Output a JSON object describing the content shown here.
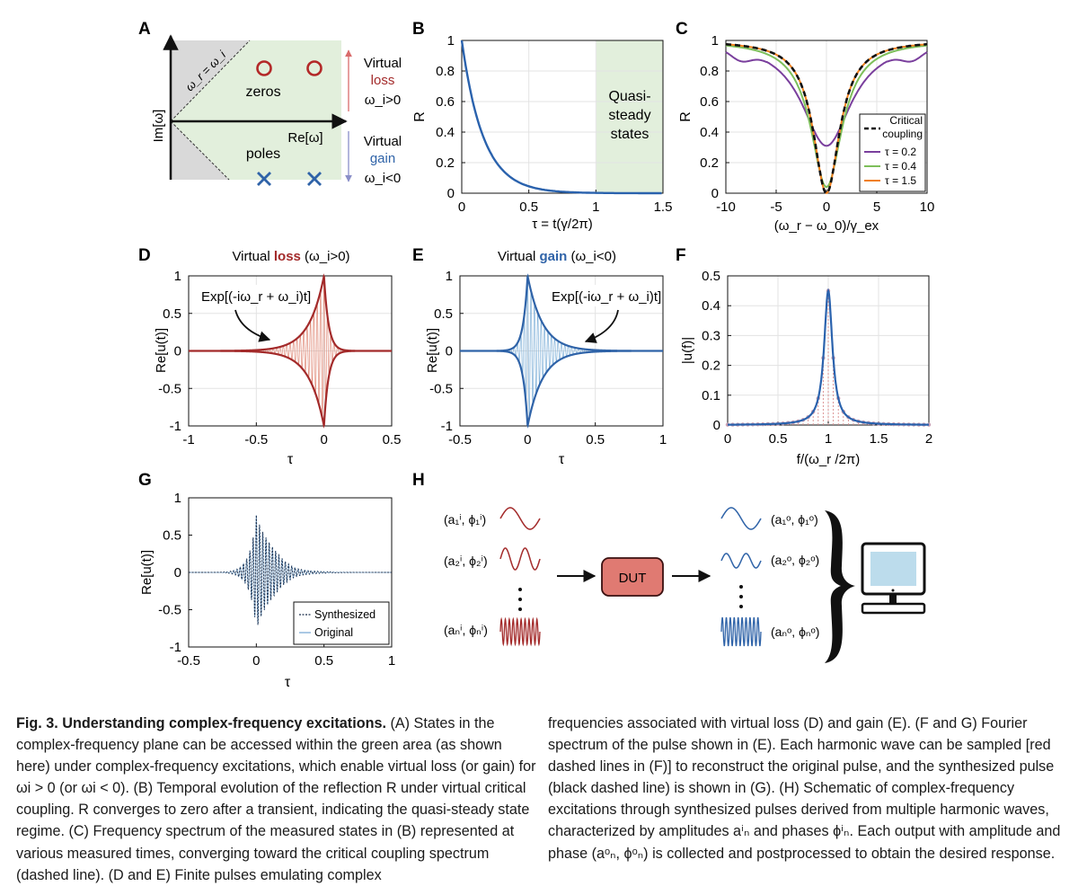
{
  "panels": {
    "A": {
      "letter": "A",
      "ylabel": "Im[ω]",
      "xlabel": "Re[ω]",
      "diag": "ω_r = ω_i",
      "zeros": "zeros",
      "poles": "poles",
      "loss_top": "Virtual",
      "loss_word": "loss",
      "loss_cond": "ω_i>0",
      "gain_top": "Virtual",
      "gain_word": "gain",
      "gain_cond": "ω_i<0"
    },
    "B": {
      "letter": "B",
      "ylabel": "R",
      "xlabel": "τ = t(γ/2π)",
      "region": [
        "Quasi-",
        "steady",
        "states"
      ]
    },
    "C": {
      "letter": "C",
      "ylabel": "R",
      "xlabel": "(ω_r − ω_0)/γ_ex"
    },
    "D": {
      "letter": "D",
      "ylabel": "Re[u(t)]",
      "xlabel": "τ",
      "title_pre": "Virtual ",
      "title_word": "loss",
      "title_post": " (ω_i>0)",
      "annot": "Exp[(-iω_r + ω_i)t]"
    },
    "E": {
      "letter": "E",
      "ylabel": "Re[u(t)]",
      "xlabel": "τ",
      "title_pre": "Virtual ",
      "title_word": "gain",
      "title_post": " (ω_i<0)",
      "annot": "Exp[(-iω_r + ω_i)t]"
    },
    "F": {
      "letter": "F",
      "ylabel": "|u(f)|",
      "xlabel": "f/(ω_r /2π)"
    },
    "G": {
      "letter": "G",
      "ylabel": "Re[u(t)]",
      "xlabel": "τ"
    },
    "H": {
      "letter": "H",
      "dut": "DUT",
      "in_labels": [
        "(a₁ⁱ, ϕ₁ⁱ)",
        "(a₂ⁱ, ϕ₂ⁱ)",
        "(aₙⁱ, ϕₙⁱ)"
      ],
      "out_labels": [
        "(a₁ᵒ, ϕ₁ᵒ)",
        "(a₂ᵒ, ϕ₂ᵒ)",
        "(aₙᵒ, ϕₙᵒ)"
      ]
    }
  },
  "colors": {
    "green_region": "#e2efdc",
    "grey_region": "#d9d9d9",
    "loss": "#a32a2a",
    "gain": "#2f63a8",
    "blue_line": "#2a62ad",
    "c_purple": "#7a3f9d",
    "c_green": "#7dbf5a",
    "c_orange": "#f07f1c"
  },
  "chart_data": [
    {
      "panel": "B",
      "type": "line",
      "xlim": [
        0,
        1.5
      ],
      "ylim": [
        0,
        1
      ],
      "xticks": [
        "0",
        "0.5",
        "1",
        "1.5"
      ],
      "yticks": [
        "0",
        "0.2",
        "0.4",
        "0.6",
        "0.8",
        "1"
      ],
      "grid": true,
      "shaded_region": [
        1,
        1.5
      ],
      "series": [
        {
          "x": [
            0,
            0.1,
            0.2,
            0.3,
            0.4,
            0.5,
            0.6,
            0.7,
            0.8,
            1.0,
            1.2,
            1.5
          ],
          "y": [
            1,
            0.54,
            0.3,
            0.16,
            0.09,
            0.05,
            0.03,
            0.015,
            0.008,
            0.003,
            0.001,
            0.0
          ]
        }
      ]
    },
    {
      "panel": "C",
      "type": "line",
      "xlim": [
        -10,
        10
      ],
      "ylim": [
        0,
        1
      ],
      "xticks": [
        "-10",
        "-5",
        "0",
        "5",
        "10"
      ],
      "yticks": [
        "0",
        "0.2",
        "0.4",
        "0.6",
        "0.8",
        "1"
      ],
      "grid": true,
      "legend": "bottom-right",
      "legend_entries": [
        [
          "Critical",
          "coupling"
        ],
        [
          "τ = 0.2"
        ],
        [
          "τ = 0.4"
        ],
        [
          "τ = 1.5"
        ]
      ],
      "series": [
        {
          "name": "Critical coupling",
          "dip_min": 0.0,
          "width": 1.6
        },
        {
          "name": "τ = 0.2",
          "dip_min": 0.31,
          "width": 3.0
        },
        {
          "name": "τ = 0.4",
          "dip_min": 0.04,
          "width": 1.9
        },
        {
          "name": "τ = 1.5",
          "dip_min": 0.0,
          "width": 1.6
        }
      ]
    },
    {
      "panel": "D",
      "type": "line",
      "xlim": [
        -1,
        0.5
      ],
      "ylim": [
        -1,
        1
      ],
      "xticks": [
        "-1",
        "-0.5",
        "0",
        "0.5"
      ],
      "yticks": [
        "-1",
        "-0.5",
        "0",
        "0.5",
        "1"
      ],
      "grid": true,
      "peak_at": 0,
      "decay_left": 9,
      "decay_right": 30
    },
    {
      "panel": "E",
      "type": "line",
      "xlim": [
        -0.5,
        1
      ],
      "ylim": [
        -1,
        1
      ],
      "xticks": [
        "-0.5",
        "0",
        "0.5",
        "1"
      ],
      "yticks": [
        "-1",
        "-0.5",
        "0",
        "0.5",
        "1"
      ],
      "grid": true,
      "peak_at": 0,
      "decay_left": 30,
      "decay_right": 9
    },
    {
      "panel": "F",
      "type": "line",
      "xlim": [
        0,
        2
      ],
      "ylim": [
        0,
        0.5
      ],
      "xticks": [
        "0",
        "0.5",
        "1",
        "1.5",
        "2"
      ],
      "yticks": [
        "0",
        "0.1",
        "0.2",
        "0.3",
        "0.4",
        "0.5"
      ],
      "grid": true,
      "peak_x": 1,
      "peak_y": 0.45,
      "half_width": 0.05,
      "sample_spacing": 0.05
    },
    {
      "panel": "G",
      "type": "line",
      "xlim": [
        -0.5,
        1
      ],
      "ylim": [
        -1,
        1
      ],
      "xticks": [
        "-0.5",
        "0",
        "0.5",
        "1"
      ],
      "yticks": [
        "-1",
        "-0.5",
        "0",
        "0.5",
        "1"
      ],
      "grid": false,
      "legend": "bottom-right",
      "series": [
        {
          "name": "Synthesized"
        },
        {
          "name": "Original"
        }
      ]
    }
  ],
  "caption": {
    "left": {
      "bold_lead": "Fig. 3. Understanding complex-frequency excitations.",
      "body": " (A) States in the complex-frequency plane can be accessed within the green area (as shown here) under complex-frequency excitations, which enable virtual loss (or gain) for ωi > 0 (or ωi < 0). (B) Temporal evolution of the reflection R under virtual critical coupling. R converges to zero after a transient, indicating the quasi-steady state regime. (C) Frequency spectrum of the measured states in (B) represented at various measured times, converging toward the critical coupling spectrum (dashed line). (D and E) Finite pulses emulating complex"
    },
    "right": {
      "body": "frequencies associated with virtual loss (D) and gain (E). (F and G) Fourier spectrum of the pulse shown in (E). Each harmonic wave can be sampled [red dashed lines in (F)] to reconstruct the original pulse, and the synthesized pulse (black dashed line) is shown in (G). (H) Schematic of complex-frequency excitations through synthesized pulses derived from multiple harmonic waves, characterized by amplitudes aⁱₙ and phases ϕⁱₙ. Each output with amplitude and phase (aᵒₙ, ϕᵒₙ) is collected and postprocessed to obtain the desired response."
    }
  }
}
